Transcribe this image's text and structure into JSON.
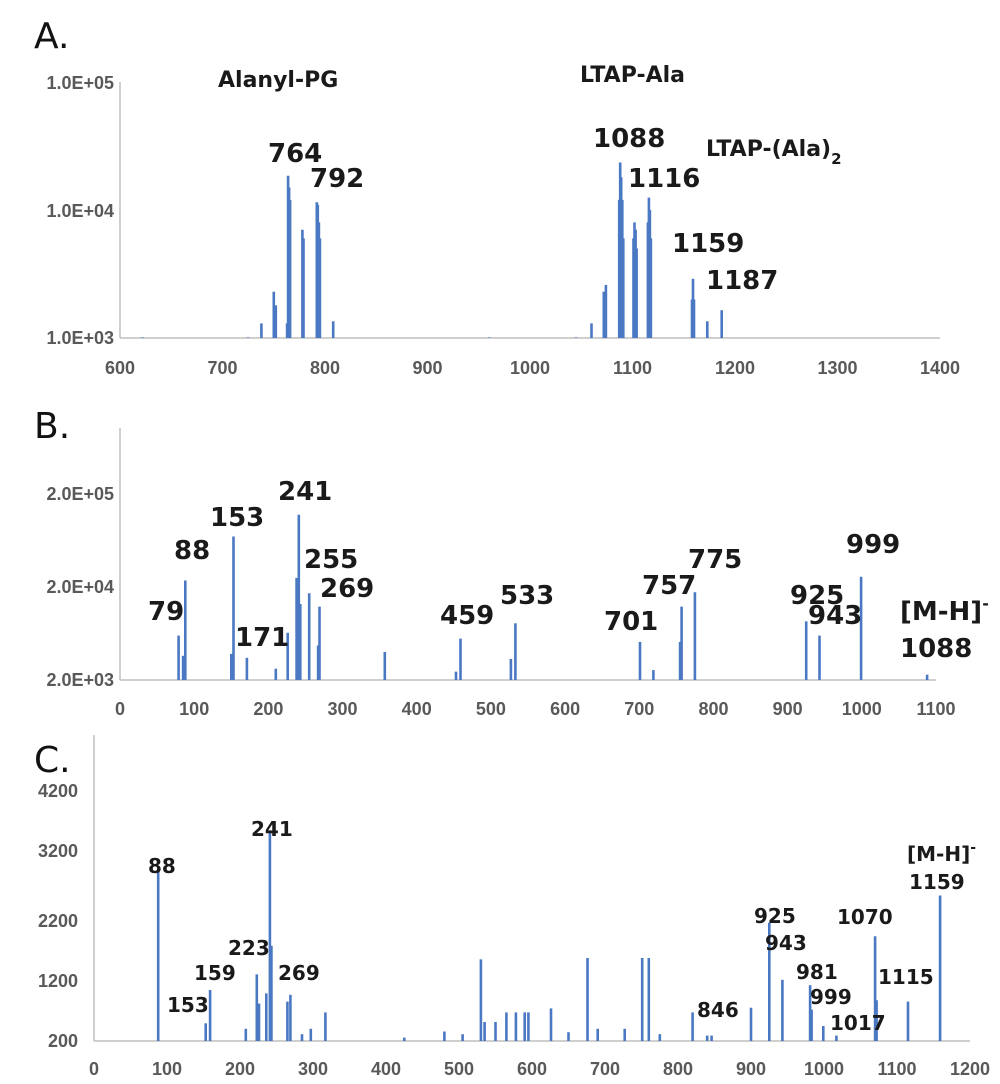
{
  "colors": {
    "bar": "#4a78c2",
    "axis": "#bfbfbf",
    "tick_text": "#595959",
    "label_text": "#1a1a1a"
  },
  "chart_data": [
    {
      "panel": "A.",
      "type": "bar",
      "y_scale": "log",
      "xlim": [
        600,
        1400
      ],
      "ylim": [
        1000,
        100000
      ],
      "x_ticks": [
        "600",
        "700",
        "800",
        "900",
        "1000",
        "1100",
        "1200",
        "1300",
        "1400"
      ],
      "y_ticks": [
        "1.0E+03",
        "1.0E+04",
        "1.0E+05"
      ],
      "annotations": [
        "Alanyl-PG",
        "LTAP-Ala",
        "LTAP-(Ala)",
        "2"
      ],
      "peak_labels": [
        {
          "text": "764",
          "x": 764
        },
        {
          "text": "792",
          "x": 792
        },
        {
          "text": "1088",
          "x": 1088
        },
        {
          "text": "1116",
          "x": 1116
        },
        {
          "text": "1159",
          "x": 1159
        },
        {
          "text": "1187",
          "x": 1187
        }
      ],
      "peaks": [
        {
          "x": 622,
          "y": 1010
        },
        {
          "x": 725,
          "y": 1010
        },
        {
          "x": 738,
          "y": 1300
        },
        {
          "x": 750,
          "y": 2300
        },
        {
          "x": 752,
          "y": 1800
        },
        {
          "x": 763,
          "y": 1300
        },
        {
          "x": 764,
          "y": 18500
        },
        {
          "x": 765,
          "y": 15000
        },
        {
          "x": 766,
          "y": 12000
        },
        {
          "x": 778,
          "y": 7000
        },
        {
          "x": 779,
          "y": 6000
        },
        {
          "x": 792,
          "y": 11500
        },
        {
          "x": 793,
          "y": 11000
        },
        {
          "x": 794,
          "y": 8000
        },
        {
          "x": 795,
          "y": 6000
        },
        {
          "x": 808,
          "y": 1350
        },
        {
          "x": 960,
          "y": 1010
        },
        {
          "x": 1045,
          "y": 1010
        },
        {
          "x": 1060,
          "y": 1300
        },
        {
          "x": 1072,
          "y": 2300
        },
        {
          "x": 1074,
          "y": 2600
        },
        {
          "x": 1087,
          "y": 12000
        },
        {
          "x": 1088,
          "y": 23500
        },
        {
          "x": 1089,
          "y": 18000
        },
        {
          "x": 1090,
          "y": 12000
        },
        {
          "x": 1091,
          "y": 6000
        },
        {
          "x": 1101,
          "y": 6000
        },
        {
          "x": 1102,
          "y": 8000
        },
        {
          "x": 1103,
          "y": 7000
        },
        {
          "x": 1104,
          "y": 5000
        },
        {
          "x": 1115,
          "y": 8000
        },
        {
          "x": 1116,
          "y": 12500
        },
        {
          "x": 1117,
          "y": 10000
        },
        {
          "x": 1118,
          "y": 6000
        },
        {
          "x": 1158,
          "y": 2000
        },
        {
          "x": 1159,
          "y": 2900
        },
        {
          "x": 1160,
          "y": 2000
        },
        {
          "x": 1173,
          "y": 1350
        },
        {
          "x": 1187,
          "y": 1650
        }
      ]
    },
    {
      "panel": "B.",
      "type": "bar",
      "y_scale": "log",
      "xlim": [
        0,
        1100
      ],
      "ylim": [
        2000,
        1600000
      ],
      "x_ticks": [
        "0",
        "100",
        "200",
        "300",
        "400",
        "500",
        "600",
        "700",
        "800",
        "900",
        "1000",
        "1100"
      ],
      "y_ticks": [
        "2.0E+03",
        "2.0E+04",
        "2.0E+05"
      ],
      "annotations": [
        "[M-H]",
        "-",
        "1088"
      ],
      "peak_labels": [
        {
          "text": "79",
          "x": 79
        },
        {
          "text": "88",
          "x": 88
        },
        {
          "text": "153",
          "x": 153
        },
        {
          "text": "171",
          "x": 171
        },
        {
          "text": "241",
          "x": 241
        },
        {
          "text": "255",
          "x": 255
        },
        {
          "text": "269",
          "x": 269
        },
        {
          "text": "459",
          "x": 459
        },
        {
          "text": "533",
          "x": 533
        },
        {
          "text": "701",
          "x": 701
        },
        {
          "text": "757",
          "x": 757
        },
        {
          "text": "775",
          "x": 775
        },
        {
          "text": "925",
          "x": 925
        },
        {
          "text": "943",
          "x": 943
        },
        {
          "text": "999",
          "x": 999
        }
      ],
      "peaks": [
        {
          "x": 79,
          "y": 6500
        },
        {
          "x": 85,
          "y": 3800
        },
        {
          "x": 88,
          "y": 28000
        },
        {
          "x": 150,
          "y": 4000
        },
        {
          "x": 153,
          "y": 90000
        },
        {
          "x": 171,
          "y": 3600
        },
        {
          "x": 210,
          "y": 2700
        },
        {
          "x": 226,
          "y": 7000
        },
        {
          "x": 238,
          "y": 30000
        },
        {
          "x": 241,
          "y": 160000
        },
        {
          "x": 243,
          "y": 15000
        },
        {
          "x": 255,
          "y": 20000
        },
        {
          "x": 267,
          "y": 5000
        },
        {
          "x": 269,
          "y": 14000
        },
        {
          "x": 357,
          "y": 4200
        },
        {
          "x": 453,
          "y": 2500
        },
        {
          "x": 459,
          "y": 6000
        },
        {
          "x": 527,
          "y": 3500
        },
        {
          "x": 533,
          "y": 9000
        },
        {
          "x": 701,
          "y": 5500
        },
        {
          "x": 719,
          "y": 2600
        },
        {
          "x": 755,
          "y": 5500
        },
        {
          "x": 757,
          "y": 14000
        },
        {
          "x": 775,
          "y": 20500
        },
        {
          "x": 925,
          "y": 9500
        },
        {
          "x": 943,
          "y": 6500
        },
        {
          "x": 999,
          "y": 31000
        },
        {
          "x": 1088,
          "y": 2300
        }
      ]
    },
    {
      "panel": "C.",
      "type": "bar",
      "y_scale": "linear",
      "xlim": [
        0,
        1200
      ],
      "ylim": [
        200,
        4700
      ],
      "x_ticks": [
        "0",
        "100",
        "200",
        "300",
        "400",
        "500",
        "600",
        "700",
        "800",
        "900",
        "1000",
        "1100",
        "1200"
      ],
      "y_ticks": [
        "200",
        "1200",
        "2200",
        "3200",
        "4200"
      ],
      "annotations": [
        "[M-H]",
        "-",
        "1159"
      ],
      "peak_labels": [
        {
          "text": "88",
          "x": 88
        },
        {
          "text": "153",
          "x": 153
        },
        {
          "text": "159",
          "x": 159
        },
        {
          "text": "223",
          "x": 223
        },
        {
          "text": "241",
          "x": 241
        },
        {
          "text": "269",
          "x": 269
        },
        {
          "text": "846",
          "x": 846
        },
        {
          "text": "925",
          "x": 925
        },
        {
          "text": "943",
          "x": 943
        },
        {
          "text": "981",
          "x": 981
        },
        {
          "text": "999",
          "x": 999
        },
        {
          "text": "1017",
          "x": 1017
        },
        {
          "text": "1070",
          "x": 1070
        },
        {
          "text": "1115",
          "x": 1115
        }
      ],
      "peaks": [
        {
          "x": 88,
          "y": 2700
        },
        {
          "x": 153,
          "y": 460
        },
        {
          "x": 159,
          "y": 950
        },
        {
          "x": 208,
          "y": 380
        },
        {
          "x": 223,
          "y": 1180
        },
        {
          "x": 226,
          "y": 750
        },
        {
          "x": 236,
          "y": 900
        },
        {
          "x": 241,
          "y": 3300
        },
        {
          "x": 243,
          "y": 1600
        },
        {
          "x": 265,
          "y": 780
        },
        {
          "x": 269,
          "y": 880
        },
        {
          "x": 285,
          "y": 300
        },
        {
          "x": 297,
          "y": 380
        },
        {
          "x": 317,
          "y": 620
        },
        {
          "x": 425,
          "y": 250
        },
        {
          "x": 480,
          "y": 340
        },
        {
          "x": 505,
          "y": 300
        },
        {
          "x": 530,
          "y": 1400
        },
        {
          "x": 535,
          "y": 480
        },
        {
          "x": 550,
          "y": 480
        },
        {
          "x": 565,
          "y": 620
        },
        {
          "x": 578,
          "y": 620
        },
        {
          "x": 590,
          "y": 620
        },
        {
          "x": 595,
          "y": 620
        },
        {
          "x": 626,
          "y": 680
        },
        {
          "x": 650,
          "y": 330
        },
        {
          "x": 676,
          "y": 1420
        },
        {
          "x": 690,
          "y": 380
        },
        {
          "x": 727,
          "y": 380
        },
        {
          "x": 751,
          "y": 1420
        },
        {
          "x": 760,
          "y": 1420
        },
        {
          "x": 775,
          "y": 300
        },
        {
          "x": 820,
          "y": 620
        },
        {
          "x": 840,
          "y": 280
        },
        {
          "x": 846,
          "y": 280
        },
        {
          "x": 900,
          "y": 690
        },
        {
          "x": 925,
          "y": 1940
        },
        {
          "x": 943,
          "y": 1100
        },
        {
          "x": 981,
          "y": 1020
        },
        {
          "x": 983,
          "y": 660
        },
        {
          "x": 999,
          "y": 420
        },
        {
          "x": 1017,
          "y": 280
        },
        {
          "x": 1070,
          "y": 1740
        },
        {
          "x": 1072,
          "y": 800
        },
        {
          "x": 1115,
          "y": 780
        },
        {
          "x": 1159,
          "y": 2340
        }
      ]
    }
  ]
}
